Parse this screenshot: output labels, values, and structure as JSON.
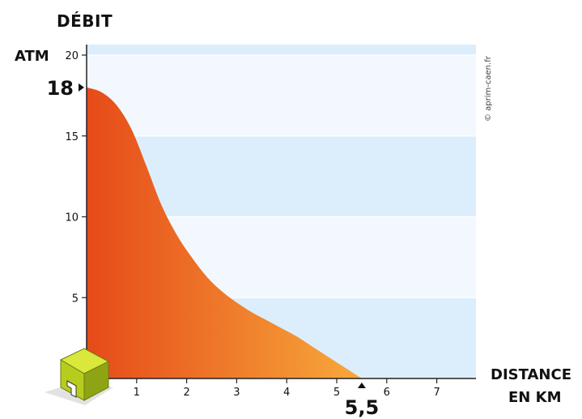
{
  "chart_data": {
    "type": "area",
    "title": "",
    "ylabel": "DÉBIT",
    "yunit": "ATM",
    "xlabel": [
      "DISTANCE",
      "EN KM"
    ],
    "xlim": [
      0,
      7.8
    ],
    "ylim": [
      0,
      20
    ],
    "xticks": [
      1,
      2,
      3,
      4,
      5,
      6,
      7
    ],
    "yticks": [
      5,
      10,
      15,
      20
    ],
    "grid": true,
    "highlight_y": {
      "value": 18,
      "label": "18"
    },
    "highlight_x": {
      "value": 5.5,
      "label": "5,5"
    },
    "series": [
      {
        "x": [
          0,
          0.3,
          0.6,
          0.9,
          1.2,
          1.5,
          1.8,
          2.1,
          2.4,
          2.7,
          3.0,
          3.3,
          3.6,
          3.9,
          4.2,
          4.5,
          4.8,
          5.1,
          5.5
        ],
        "y": [
          18,
          17.7,
          16.9,
          15.4,
          13.1,
          10.7,
          8.9,
          7.5,
          6.3,
          5.4,
          4.7,
          4.1,
          3.6,
          3.1,
          2.6,
          2.0,
          1.4,
          0.8,
          0
        ]
      }
    ],
    "colors": {
      "fill_start": "#E64A19",
      "fill_end": "#F7A93B",
      "band_light": "#F2F8FD",
      "band_dark": "#DCEEFB",
      "cube_top": "#D9E83A",
      "cube_front": "#B7CC1E",
      "cube_side": "#8FA414"
    }
  },
  "labels": {
    "ytitle": "DÉBIT",
    "yunit": "ATM",
    "xtitle_line1": "DISTANCE",
    "xtitle_line2": "EN KM",
    "copyright": "© aprim-caen.fr"
  },
  "icons": {
    "building": "cube-building-icon",
    "marker": "triangle-marker-icon"
  }
}
